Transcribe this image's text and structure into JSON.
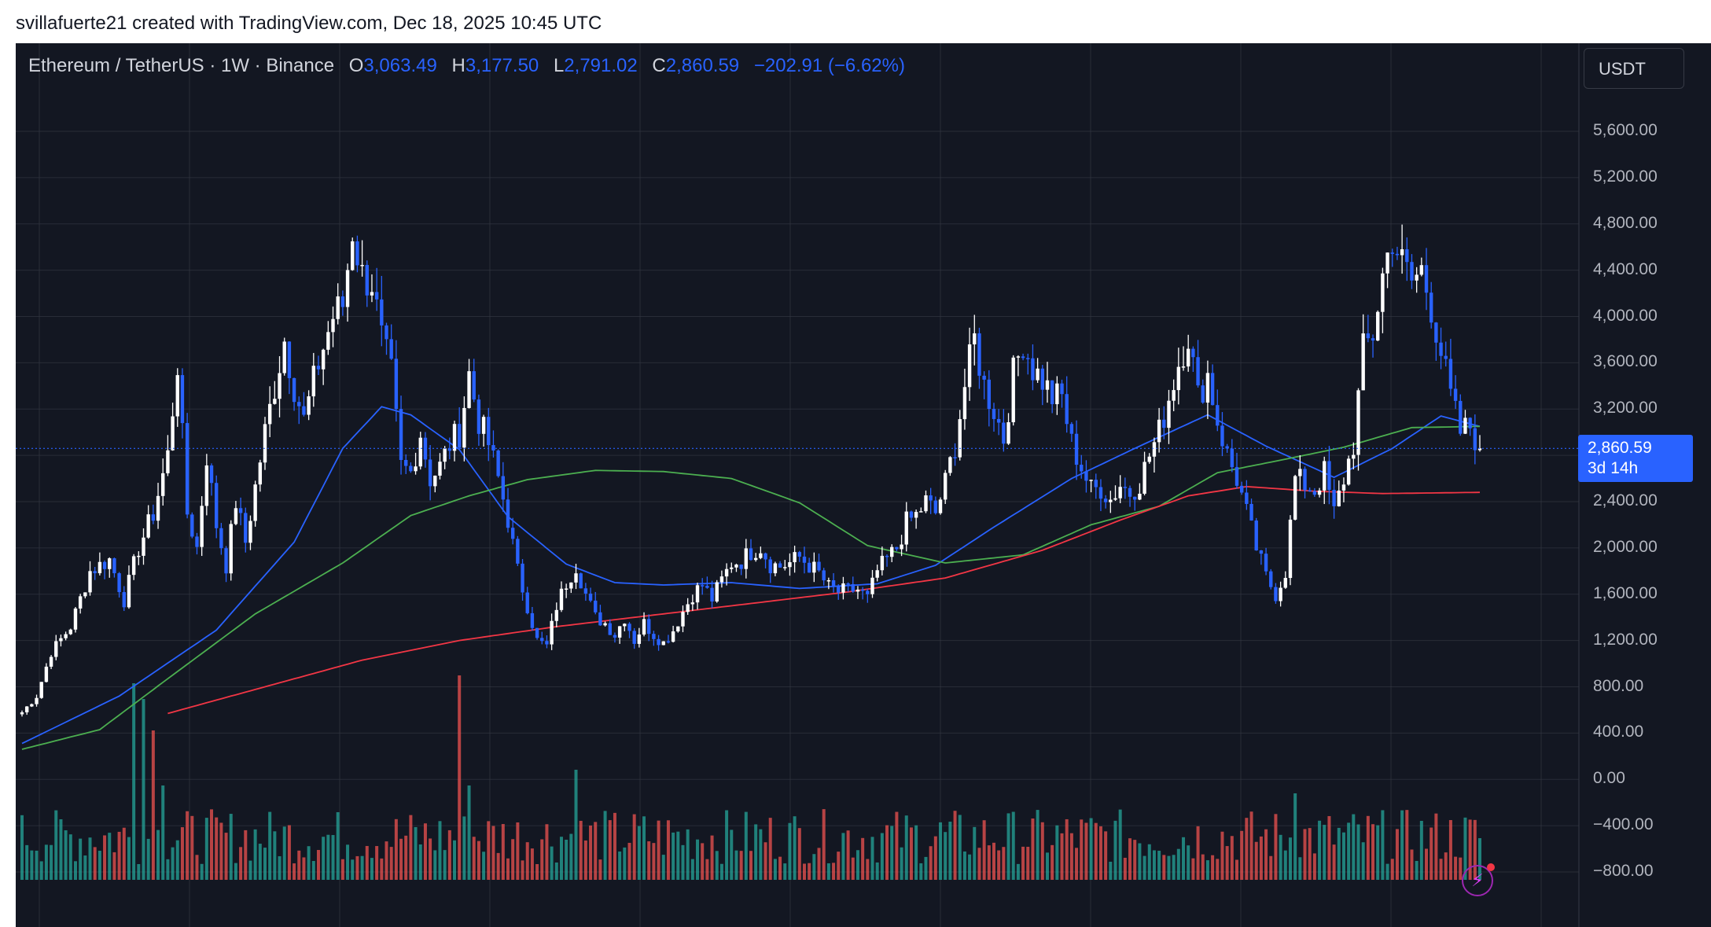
{
  "credit": "svillafuerte21 created with TradingView.com, Dec 18, 2025 10:45 UTC",
  "legend": {
    "symbol": "Ethereum / TetherUS · 1W · Binance",
    "open_label": "O",
    "open": "3,063.49",
    "high_label": "H",
    "high": "3,177.50",
    "low_label": "L",
    "low": "2,791.02",
    "close_label": "C",
    "close": "2,860.59",
    "change": "−202.91 (−6.62%)"
  },
  "currency": "USDT",
  "price_tag": {
    "price": "2,860.59",
    "countdown": "3d 14h"
  },
  "colors": {
    "background": "#131722",
    "grid": "#363a45",
    "up_candle": "#ffffff",
    "down_candle": "#2962ff",
    "ma_blue": "#2962ff",
    "ma_green": "#4caf50",
    "ma_red": "#f23645",
    "volume_up": "#26a69a",
    "volume_down": "#ef5350"
  },
  "yaxis": {
    "labels": [
      "5,600.00",
      "5,200.00",
      "4,800.00",
      "4,400.00",
      "4,000.00",
      "3,600.00",
      "3,200.00",
      "2,400.00",
      "2,000.00",
      "1,600.00",
      "1,200.00",
      "800.00",
      "400.00",
      "0.00",
      "−400.00",
      "−800.00"
    ],
    "values": [
      5600,
      5200,
      4800,
      4400,
      4000,
      3600,
      3200,
      2400,
      2000,
      1600,
      1200,
      800,
      400,
      0,
      -400,
      -800
    ]
  },
  "icons": {
    "alert": "lightning-bolt-icon"
  },
  "chart_data": {
    "type": "candlestick",
    "interval": "1W",
    "ylim": [
      -1000,
      6200
    ],
    "series_close_anchors": [
      [
        0,
        580
      ],
      [
        3,
        720
      ],
      [
        6,
        1100
      ],
      [
        10,
        1320
      ],
      [
        14,
        1800
      ],
      [
        18,
        1900
      ],
      [
        21,
        1550
      ],
      [
        24,
        2000
      ],
      [
        27,
        2300
      ],
      [
        30,
        2800
      ],
      [
        32,
        3600
      ],
      [
        34,
        2300
      ],
      [
        36,
        2000
      ],
      [
        38,
        2800
      ],
      [
        40,
        2200
      ],
      [
        42,
        1850
      ],
      [
        44,
        2400
      ],
      [
        46,
        2050
      ],
      [
        50,
        3000
      ],
      [
        54,
        3800
      ],
      [
        56,
        3400
      ],
      [
        58,
        3100
      ],
      [
        61,
        3600
      ],
      [
        64,
        4000
      ],
      [
        66,
        4100
      ],
      [
        68,
        4750
      ],
      [
        70,
        4350
      ],
      [
        72,
        4300
      ],
      [
        74,
        3800
      ],
      [
        76,
        3500
      ],
      [
        78,
        2700
      ],
      [
        80,
        2650
      ],
      [
        82,
        3000
      ],
      [
        84,
        2600
      ],
      [
        86,
        2700
      ],
      [
        88,
        2900
      ],
      [
        90,
        3000
      ],
      [
        92,
        3500
      ],
      [
        94,
        3100
      ],
      [
        96,
        2900
      ],
      [
        98,
        2600
      ],
      [
        100,
        2250
      ],
      [
        102,
        1800
      ],
      [
        104,
        1500
      ],
      [
        106,
        1200
      ],
      [
        108,
        1150
      ],
      [
        110,
        1500
      ],
      [
        112,
        1700
      ],
      [
        114,
        1850
      ],
      [
        116,
        1600
      ],
      [
        118,
        1400
      ],
      [
        120,
        1350
      ],
      [
        122,
        1250
      ],
      [
        124,
        1400
      ],
      [
        126,
        1200
      ],
      [
        128,
        1350
      ],
      [
        130,
        1250
      ],
      [
        132,
        1180
      ],
      [
        134,
        1290
      ],
      [
        136,
        1450
      ],
      [
        138,
        1600
      ],
      [
        140,
        1680
      ],
      [
        142,
        1560
      ],
      [
        144,
        1720
      ],
      [
        146,
        1870
      ],
      [
        148,
        1890
      ],
      [
        150,
        1970
      ],
      [
        152,
        2010
      ],
      [
        154,
        1860
      ],
      [
        156,
        1840
      ],
      [
        158,
        1870
      ],
      [
        160,
        1920
      ],
      [
        162,
        1850
      ],
      [
        164,
        1780
      ],
      [
        166,
        1660
      ],
      [
        168,
        1620
      ],
      [
        170,
        1630
      ],
      [
        172,
        1640
      ],
      [
        174,
        1560
      ],
      [
        176,
        1800
      ],
      [
        178,
        1900
      ],
      [
        180,
        2000
      ],
      [
        182,
        2220
      ],
      [
        184,
        2280
      ],
      [
        186,
        2400
      ],
      [
        188,
        2300
      ],
      [
        190,
        2560
      ],
      [
        192,
        2900
      ],
      [
        194,
        3400
      ],
      [
        196,
        3800
      ],
      [
        198,
        3400
      ],
      [
        200,
        3200
      ],
      [
        202,
        2950
      ],
      [
        204,
        3500
      ],
      [
        206,
        3800
      ],
      [
        208,
        3550
      ],
      [
        210,
        3450
      ],
      [
        212,
        3300
      ],
      [
        214,
        3300
      ],
      [
        216,
        2900
      ],
      [
        218,
        2700
      ],
      [
        220,
        2500
      ],
      [
        222,
        2520
      ],
      [
        224,
        2420
      ],
      [
        226,
        2550
      ],
      [
        228,
        2480
      ],
      [
        230,
        2570
      ],
      [
        232,
        2800
      ],
      [
        234,
        3000
      ],
      [
        236,
        3300
      ],
      [
        238,
        3600
      ],
      [
        240,
        3850
      ],
      [
        242,
        3300
      ],
      [
        244,
        3500
      ],
      [
        246,
        3100
      ],
      [
        248,
        2800
      ],
      [
        250,
        2600
      ],
      [
        252,
        2300
      ],
      [
        254,
        2000
      ],
      [
        256,
        1750
      ],
      [
        258,
        1600
      ],
      [
        260,
        1800
      ],
      [
        262,
        2600
      ],
      [
        264,
        2550
      ],
      [
        266,
        2500
      ],
      [
        268,
        2650
      ],
      [
        270,
        2300
      ],
      [
        272,
        2600
      ],
      [
        274,
        2900
      ],
      [
        276,
        3700
      ],
      [
        278,
        3850
      ],
      [
        280,
        4350
      ],
      [
        282,
        4700
      ],
      [
        284,
        4450
      ],
      [
        286,
        4300
      ],
      [
        288,
        4400
      ],
      [
        290,
        4100
      ],
      [
        292,
        3700
      ],
      [
        294,
        3300
      ],
      [
        296,
        3000
      ],
      [
        298,
        3050
      ],
      [
        300,
        2860
      ]
    ],
    "moving_averages": [
      {
        "color": "blue",
        "points": [
          [
            0,
            310
          ],
          [
            20,
            720
          ],
          [
            40,
            1290
          ],
          [
            56,
            2050
          ],
          [
            66,
            2860
          ],
          [
            74,
            3220
          ],
          [
            80,
            3150
          ],
          [
            90,
            2850
          ],
          [
            100,
            2270
          ],
          [
            112,
            1860
          ],
          [
            122,
            1700
          ],
          [
            132,
            1680
          ],
          [
            146,
            1700
          ],
          [
            160,
            1650
          ],
          [
            176,
            1690
          ],
          [
            188,
            1850
          ],
          [
            200,
            2180
          ],
          [
            216,
            2600
          ],
          [
            230,
            2880
          ],
          [
            244,
            3150
          ],
          [
            256,
            2880
          ],
          [
            270,
            2610
          ],
          [
            282,
            2860
          ],
          [
            292,
            3140
          ],
          [
            300,
            3050
          ]
        ]
      },
      {
        "color": "green",
        "points": [
          [
            0,
            260
          ],
          [
            16,
            430
          ],
          [
            30,
            870
          ],
          [
            48,
            1430
          ],
          [
            66,
            1870
          ],
          [
            80,
            2280
          ],
          [
            92,
            2450
          ],
          [
            104,
            2590
          ],
          [
            118,
            2670
          ],
          [
            132,
            2660
          ],
          [
            146,
            2600
          ],
          [
            160,
            2390
          ],
          [
            174,
            2020
          ],
          [
            190,
            1870
          ],
          [
            206,
            1940
          ],
          [
            220,
            2200
          ],
          [
            234,
            2360
          ],
          [
            246,
            2650
          ],
          [
            258,
            2750
          ],
          [
            272,
            2870
          ],
          [
            286,
            3040
          ],
          [
            300,
            3050
          ]
        ]
      },
      {
        "color": "red",
        "points": [
          [
            30,
            570
          ],
          [
            50,
            800
          ],
          [
            70,
            1030
          ],
          [
            90,
            1200
          ],
          [
            110,
            1320
          ],
          [
            130,
            1420
          ],
          [
            150,
            1520
          ],
          [
            170,
            1620
          ],
          [
            190,
            1740
          ],
          [
            210,
            1980
          ],
          [
            226,
            2240
          ],
          [
            240,
            2450
          ],
          [
            252,
            2530
          ],
          [
            266,
            2490
          ],
          [
            280,
            2470
          ],
          [
            300,
            2480
          ]
        ]
      }
    ],
    "volume_note": "volume histogram at bottom, green up / red down"
  }
}
